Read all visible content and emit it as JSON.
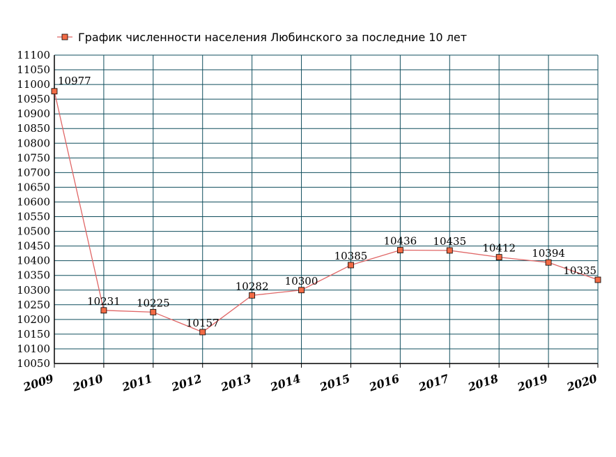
{
  "colors": {
    "line": "#e06666",
    "marker_fill": "#f26b45",
    "marker_stroke": "#000000",
    "grid": "#0f4d5c",
    "axis": "#000000"
  },
  "legend": {
    "marker_icon": "square-marker-icon"
  },
  "chart_data": {
    "type": "line",
    "title": "",
    "xlabel": "",
    "ylabel": "",
    "legend_position": "top",
    "grid": true,
    "categories": [
      "2009",
      "2010",
      "2011",
      "2012",
      "2013",
      "2014",
      "2015",
      "2016",
      "2017",
      "2018",
      "2019",
      "2020"
    ],
    "ylim": [
      10050,
      11100
    ],
    "ytick_step": 50,
    "yticks": [
      "10050",
      "10100",
      "10150",
      "10200",
      "10250",
      "10300",
      "10350",
      "10400",
      "10450",
      "10500",
      "10550",
      "10600",
      "10650",
      "10700",
      "10750",
      "10800",
      "10850",
      "10900",
      "10950",
      "11000",
      "11050",
      "11100"
    ],
    "series": [
      {
        "name": "График численности населения Любинского за последние 10 лет",
        "values": [
          10977,
          10231,
          10225,
          10157,
          10282,
          10300,
          10385,
          10436,
          10435,
          10412,
          10394,
          10335
        ],
        "data_labels": [
          "10977",
          "10231",
          "10225",
          "10157",
          "10282",
          "10300",
          "10385",
          "10436",
          "10435",
          "10412",
          "10394",
          "10335"
        ]
      }
    ]
  }
}
